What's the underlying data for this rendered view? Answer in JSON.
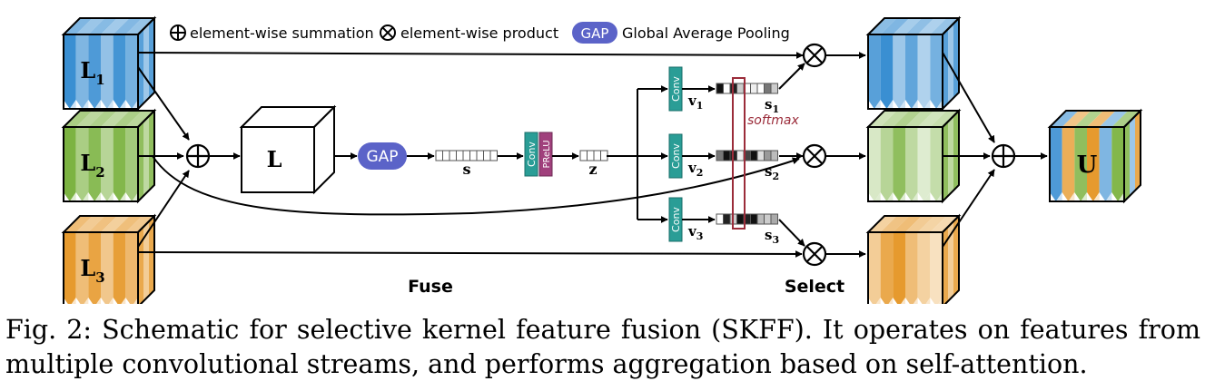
{
  "legend": {
    "sum_text": "element-wise summation",
    "product_text": "element-wise product",
    "gap_badge": "GAP",
    "gap_text": "Global Average Pooling"
  },
  "inputs": [
    {
      "letter": "L",
      "sub": "1",
      "color": "#3a8fd2"
    },
    {
      "letter": "L",
      "sub": "2",
      "color": "#7cb342"
    },
    {
      "letter": "L",
      "sub": "3",
      "color": "#e69a2e"
    }
  ],
  "fuse": {
    "cube_label": "L",
    "gap_label": "GAP",
    "s_label": "s",
    "conv_label": "Conv",
    "prelu_label": "PReLU",
    "z_label": "z",
    "section_label": "Fuse"
  },
  "select": {
    "branches": [
      {
        "conv_label": "Conv",
        "v_letter": "v",
        "v_sub": "1",
        "s_letter": "s",
        "s_sub": "1"
      },
      {
        "conv_label": "Conv",
        "v_letter": "v",
        "v_sub": "2",
        "s_letter": "s",
        "s_sub": "2"
      },
      {
        "conv_label": "Conv",
        "v_letter": "v",
        "v_sub": "3",
        "s_letter": "s",
        "s_sub": "3"
      }
    ],
    "softmax_label": "softmax",
    "section_label": "Select"
  },
  "output": {
    "letter": "U"
  },
  "caption": "Fig. 2: Schematic for selective kernel feature fusion (SKFF). It operates on features from multiple convolutional streams, and performs aggregation based on self-attention.",
  "colors": {
    "blue": "#3a8fd2",
    "green": "#7cb342",
    "orange": "#e69a2e",
    "gap": "#5b63c8",
    "conv": "#2a9d96",
    "prelu": "#a0407c",
    "softmax": "#9b2c3a"
  }
}
